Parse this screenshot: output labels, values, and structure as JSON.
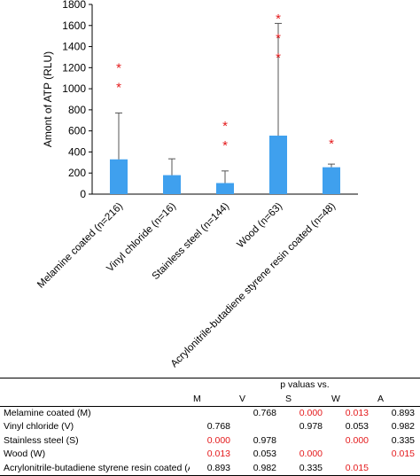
{
  "chart_data": {
    "type": "bar",
    "title": "",
    "xlabel": "",
    "ylabel": "Amont of ATP (RLU)",
    "ylim": [
      0,
      1800
    ],
    "yticks": [
      0,
      200,
      400,
      600,
      800,
      1000,
      1200,
      1400,
      1600,
      1800
    ],
    "categories": [
      "Melamine coated (n=216)",
      "Vinyl chloride (n=16)",
      "Stainless steel (n=144)",
      "Wood (n=63)",
      "Acrylonitrile-butadiene styrene resin coated (n=48)"
    ],
    "values": [
      330,
      180,
      105,
      555,
      255
    ],
    "error_upper": [
      770,
      335,
      220,
      1620,
      285
    ],
    "significance": [
      "* *",
      "",
      "* *",
      "* * *",
      "*"
    ],
    "bar_color": "#3fa0ee",
    "sig_color": "#e41a1c",
    "grid": false
  },
  "table": {
    "header": "p valuas vs.",
    "columns": [
      "M",
      "V",
      "S",
      "W",
      "A"
    ],
    "rows": [
      {
        "label": "Melamine coated (M)",
        "cells": [
          "",
          "0.768",
          "0.000",
          "0.013",
          "0.893"
        ]
      },
      {
        "label": "Vinyl chloride (V)",
        "cells": [
          "0.768",
          "",
          "0.978",
          "0.053",
          "0.982"
        ]
      },
      {
        "label": "Stainless steel (S)",
        "cells": [
          "0.000",
          "0.978",
          "",
          "0.000",
          "0.335"
        ]
      },
      {
        "label": "Wood (W)",
        "cells": [
          "0.013",
          "0.053",
          "0.000",
          "",
          "0.015"
        ]
      },
      {
        "label": "Acrylonitrile-butadiene styrene resin coated (A)",
        "cells": [
          "0.893",
          "0.982",
          "0.335",
          "0.015",
          ""
        ]
      }
    ],
    "significant_color": "#e41a1c",
    "significant_values": [
      "0.000",
      "0.013",
      "0.015"
    ]
  }
}
